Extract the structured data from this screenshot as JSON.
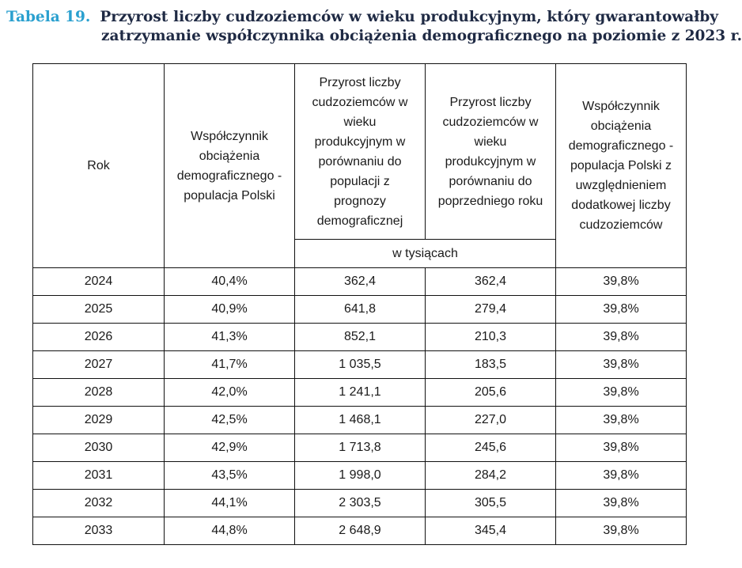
{
  "caption": {
    "label": "Tabela 19.",
    "line1": "Przyrost liczby cudzoziemców w wieku produkcyjnym, który gwarantowałby",
    "line2": "zatrzymanie współczynnika obciążenia demograficznego na poziomie z 2023 r."
  },
  "table": {
    "headers": {
      "year": "Rok",
      "ratio": "Współczynnik obciążenia demograficznego - populacja Polski",
      "growth_vs_forecast": "Przyrost liczby cudzoziemców w wieku produkcyjnym w porównaniu do populacji z prognozy demograficznej",
      "growth_vs_previous": "Przyrost liczby cudzoziemców w wieku produkcyjnym w porównaniu do poprzedniego roku",
      "ratio_with_foreigners": "Współczynnik obciążenia demograficznego - populacja Polski z uwzględnieniem dodatkowej liczby cudzoziemców",
      "units": "w tysiącach"
    },
    "rows": [
      {
        "year": "2024",
        "ratio": "40,4%",
        "vs_forecast": "362,4",
        "vs_previous": "362,4",
        "ratio_adj": "39,8%"
      },
      {
        "year": "2025",
        "ratio": "40,9%",
        "vs_forecast": "641,8",
        "vs_previous": "279,4",
        "ratio_adj": "39,8%"
      },
      {
        "year": "2026",
        "ratio": "41,3%",
        "vs_forecast": "852,1",
        "vs_previous": "210,3",
        "ratio_adj": "39,8%"
      },
      {
        "year": "2027",
        "ratio": "41,7%",
        "vs_forecast": "1 035,5",
        "vs_previous": "183,5",
        "ratio_adj": "39,8%"
      },
      {
        "year": "2028",
        "ratio": "42,0%",
        "vs_forecast": "1 241,1",
        "vs_previous": "205,6",
        "ratio_adj": "39,8%"
      },
      {
        "year": "2029",
        "ratio": "42,5%",
        "vs_forecast": "1 468,1",
        "vs_previous": "227,0",
        "ratio_adj": "39,8%"
      },
      {
        "year": "2030",
        "ratio": "42,9%",
        "vs_forecast": "1 713,8",
        "vs_previous": "245,6",
        "ratio_adj": "39,8%"
      },
      {
        "year": "2031",
        "ratio": "43,5%",
        "vs_forecast": "1 998,0",
        "vs_previous": "284,2",
        "ratio_adj": "39,8%"
      },
      {
        "year": "2032",
        "ratio": "44,1%",
        "vs_forecast": "2 303,5",
        "vs_previous": "305,5",
        "ratio_adj": "39,8%"
      },
      {
        "year": "2033",
        "ratio": "44,8%",
        "vs_forecast": "2 648,9",
        "vs_previous": "345,4",
        "ratio_adj": "39,8%"
      }
    ]
  }
}
